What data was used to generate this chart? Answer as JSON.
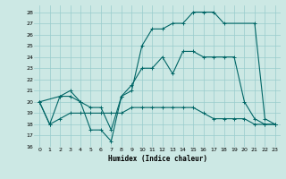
{
  "xlabel": "Humidex (Indice chaleur)",
  "background_color": "#cce8e4",
  "grid_color": "#99cccc",
  "line_color": "#006666",
  "xlim": [
    -0.5,
    23.5
  ],
  "ylim": [
    16,
    28.6
  ],
  "yticks": [
    16,
    17,
    18,
    19,
    20,
    21,
    22,
    23,
    24,
    25,
    26,
    27,
    28
  ],
  "xticks": [
    0,
    1,
    2,
    3,
    4,
    5,
    6,
    7,
    8,
    9,
    10,
    11,
    12,
    13,
    14,
    15,
    16,
    17,
    18,
    19,
    20,
    21,
    22,
    23
  ],
  "line1_x": [
    0,
    1,
    2,
    3,
    4,
    5,
    6,
    7,
    8,
    9,
    10,
    11,
    12,
    13,
    14,
    15,
    16,
    17,
    18,
    21,
    22,
    23
  ],
  "line1_y": [
    20,
    18,
    20.5,
    20.5,
    20,
    17.5,
    17.5,
    16.5,
    20.5,
    21,
    25,
    26.5,
    26.5,
    27,
    27,
    28,
    28,
    28,
    27,
    27,
    18.5,
    18
  ],
  "line2_x": [
    0,
    2,
    3,
    4,
    5,
    6,
    7,
    8,
    9,
    10,
    11,
    12,
    13,
    14,
    15,
    16,
    17,
    18,
    19,
    20,
    21,
    22,
    23
  ],
  "line2_y": [
    20,
    20.5,
    21,
    20,
    19.5,
    19.5,
    17.5,
    20.5,
    21.5,
    23,
    23,
    24,
    22.5,
    24.5,
    24.5,
    24,
    24,
    24,
    24,
    20,
    18.5,
    18,
    18
  ],
  "line3_x": [
    0,
    1,
    2,
    3,
    4,
    5,
    6,
    7,
    8,
    9,
    10,
    11,
    12,
    13,
    14,
    15,
    16,
    17,
    18,
    19,
    20,
    21,
    22,
    23
  ],
  "line3_y": [
    20,
    18,
    18.5,
    19,
    19,
    19,
    19,
    19,
    19,
    19.5,
    19.5,
    19.5,
    19.5,
    19.5,
    19.5,
    19.5,
    19,
    18.5,
    18.5,
    18.5,
    18.5,
    18,
    18,
    18
  ]
}
